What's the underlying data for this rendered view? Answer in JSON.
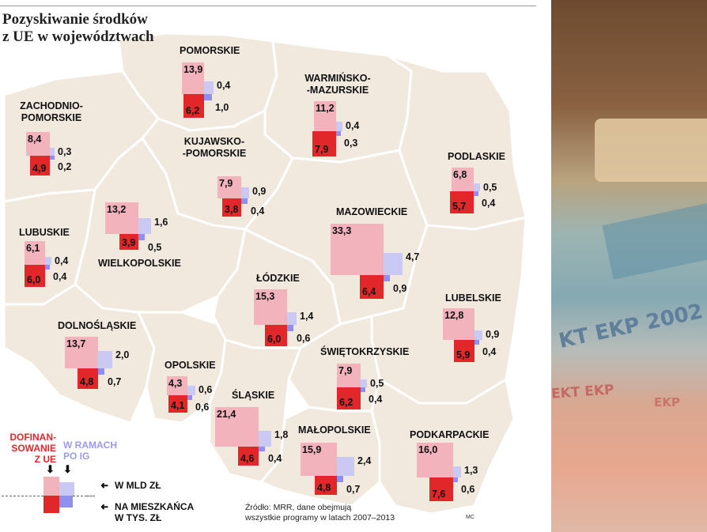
{
  "title": "Pozyskiwanie środków\nz UE w województwach",
  "regions": [
    {
      "id": "pomorskie",
      "name": "POMORSKIE",
      "eu_bln": "13,9",
      "ig_bln": "0,4",
      "eu_per_capita": "6,2",
      "ig_per_capita": "1,0"
    },
    {
      "id": "warminsko",
      "name": "WARMIŃSKO-\n-MAZURSKIE",
      "eu_bln": "11,2",
      "ig_bln": "0,4",
      "eu_per_capita": "7,9",
      "ig_per_capita": "0,3"
    },
    {
      "id": "zachodnio",
      "name": "ZACHODNIO-\nPOMORSKIE",
      "eu_bln": "8,4",
      "ig_bln": "0,3",
      "eu_per_capita": "4,9",
      "ig_per_capita": "0,2"
    },
    {
      "id": "kujawsko",
      "name": "KUJAWSKO-\n-POMORSKIE",
      "eu_bln": "7,9",
      "ig_bln": "0,9",
      "eu_per_capita": "3,8",
      "ig_per_capita": "0,4"
    },
    {
      "id": "podlaskie",
      "name": "PODLASKIE",
      "eu_bln": "6,8",
      "ig_bln": "0,5",
      "eu_per_capita": "5,7",
      "ig_per_capita": "0,4"
    },
    {
      "id": "lubuskie",
      "name": "LUBUSKIE",
      "eu_bln": "6,1",
      "ig_bln": "0,4",
      "eu_per_capita": "6,0",
      "ig_per_capita": "0,4"
    },
    {
      "id": "wielkopolskie",
      "name": "WIELKOPOLSKIE",
      "eu_bln": "13,2",
      "ig_bln": "1,6",
      "eu_per_capita": "3,9",
      "ig_per_capita": "0,5"
    },
    {
      "id": "mazowieckie",
      "name": "MAZOWIECKIE",
      "eu_bln": "33,3",
      "ig_bln": "4,7",
      "eu_per_capita": "6,4",
      "ig_per_capita": "0,9"
    },
    {
      "id": "lodzkie",
      "name": "ŁÓDZKIE",
      "eu_bln": "15,3",
      "ig_bln": "1,4",
      "eu_per_capita": "6,0",
      "ig_per_capita": "0,6"
    },
    {
      "id": "lubelskie",
      "name": "LUBELSKIE",
      "eu_bln": "12,8",
      "ig_bln": "0,9",
      "eu_per_capita": "5,9",
      "ig_per_capita": "0,4"
    },
    {
      "id": "dolnoslaskie",
      "name": "DOLNOŚLĄSKIE",
      "eu_bln": "13,7",
      "ig_bln": "2,0",
      "eu_per_capita": "4,8",
      "ig_per_capita": "0,7"
    },
    {
      "id": "swietokrzyskie",
      "name": "ŚWIĘTOKRZYSKIE",
      "eu_bln": "7,9",
      "ig_bln": "0,5",
      "eu_per_capita": "6,2",
      "ig_per_capita": "0,4"
    },
    {
      "id": "opolskie",
      "name": "OPOLSKIE",
      "eu_bln": "4,3",
      "ig_bln": "0,6",
      "eu_per_capita": "4,1",
      "ig_per_capita": "0,6"
    },
    {
      "id": "slaskie",
      "name": "ŚLĄSKIE",
      "eu_bln": "21,4",
      "ig_bln": "1,8",
      "eu_per_capita": "4,6",
      "ig_per_capita": "0,4"
    },
    {
      "id": "malopolskie",
      "name": "MAŁOPOLSKIE",
      "eu_bln": "15,9",
      "ig_bln": "2,4",
      "eu_per_capita": "4,8",
      "ig_per_capita": "0,7"
    },
    {
      "id": "podkarpackie",
      "name": "PODKARPACKIE",
      "eu_bln": "16,0",
      "ig_bln": "1,3",
      "eu_per_capita": "7,6",
      "ig_per_capita": "0,6"
    }
  ],
  "legend": {
    "eu_label": "DOFINAN-\nSOWANIE\nZ UE",
    "ig_label": "W RAMACH\nPO IG",
    "arrow_symbol": "➜",
    "down_arrow": "⬇",
    "upper_text": "W MLD ZŁ",
    "lower_text": "NA MIESZKAŃCA\nW TYS. ZŁ"
  },
  "source": "Źródło: MRR, dane obejmują\nwszystkie programy w latach 2007–2013",
  "author": "MC",
  "photo": {
    "text1": "KT EKP 2002",
    "text2": "EKT EKP",
    "text3": "EKP"
  },
  "colors": {
    "eu_bln": "#f2b3bc",
    "eu_per_capita": "#e2272b",
    "ig_bln": "#c9c9f4",
    "ig_per_capita": "#8f8ff0",
    "region_fill": "#f1e8de"
  }
}
